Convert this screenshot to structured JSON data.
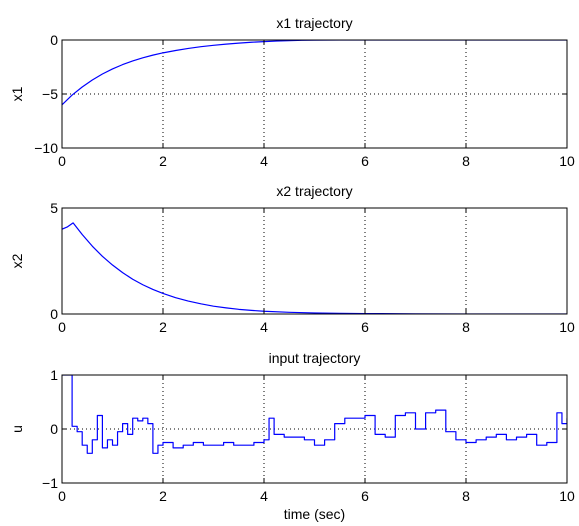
{
  "chart_data": [
    {
      "type": "line",
      "title": "x1 trajectory",
      "xlabel": "",
      "ylabel": "x1",
      "xlim": [
        0,
        10
      ],
      "ylim": [
        -10,
        0
      ],
      "xticks": [
        0,
        2,
        4,
        6,
        8,
        10
      ],
      "yticks": [
        -10,
        -5,
        0
      ],
      "grid": true,
      "series": [
        {
          "color": "#0000ff",
          "x": [
            0,
            0.2,
            0.4,
            0.6,
            0.8,
            1.0,
            1.2,
            1.4,
            1.6,
            1.8,
            2.0,
            2.25,
            2.5,
            2.75,
            3.0,
            3.25,
            3.5,
            3.75,
            4.0,
            4.25,
            4.5,
            4.75,
            5.0,
            5.5,
            6.0,
            7.0,
            8.0,
            9.0,
            10.0
          ],
          "y": [
            -6.0,
            -5.1,
            -4.35,
            -3.7,
            -3.15,
            -2.68,
            -2.28,
            -1.94,
            -1.65,
            -1.4,
            -1.19,
            -0.97,
            -0.78,
            -0.62,
            -0.49,
            -0.38,
            -0.29,
            -0.21,
            -0.15,
            -0.1,
            -0.06,
            -0.03,
            -0.01,
            0.0,
            0.0,
            0.0,
            0.0,
            0.0,
            0.0
          ]
        }
      ]
    },
    {
      "type": "line",
      "title": "x2 trajectory",
      "xlabel": "",
      "ylabel": "x2",
      "xlim": [
        0,
        10
      ],
      "ylim": [
        0,
        5
      ],
      "xticks": [
        0,
        2,
        4,
        6,
        8,
        10
      ],
      "yticks": [
        0,
        5
      ],
      "grid": true,
      "series": [
        {
          "color": "#0000ff",
          "x": [
            0,
            0.1,
            0.22,
            0.4,
            0.6,
            0.8,
            1.0,
            1.2,
            1.4,
            1.6,
            1.8,
            2.0,
            2.25,
            2.5,
            2.75,
            3.0,
            3.25,
            3.5,
            3.75,
            4.0,
            4.5,
            5.0,
            5.5,
            6.0,
            7.0,
            8.0,
            9.0,
            10.0
          ],
          "y": [
            4.0,
            4.1,
            4.3,
            3.75,
            3.2,
            2.72,
            2.31,
            1.95,
            1.64,
            1.38,
            1.16,
            0.97,
            0.77,
            0.61,
            0.48,
            0.37,
            0.29,
            0.22,
            0.17,
            0.13,
            0.08,
            0.05,
            0.03,
            0.02,
            0.01,
            0.0,
            0.0,
            0.0
          ]
        }
      ]
    },
    {
      "type": "line",
      "title": "input trajectory",
      "xlabel": "time (sec)",
      "ylabel": "u",
      "xlim": [
        0,
        10
      ],
      "ylim": [
        -1,
        1
      ],
      "xticks": [
        0,
        2,
        4,
        6,
        8,
        10
      ],
      "yticks": [
        -1,
        0,
        1
      ],
      "grid": true,
      "series": [
        {
          "color": "#0000ff",
          "step": true,
          "x": [
            0,
            0.1,
            0.2,
            0.3,
            0.4,
            0.5,
            0.6,
            0.7,
            0.8,
            0.9,
            1.0,
            1.1,
            1.2,
            1.3,
            1.4,
            1.5,
            1.6,
            1.7,
            1.8,
            1.9,
            2.0,
            2.2,
            2.4,
            2.6,
            2.8,
            3.0,
            3.2,
            3.4,
            3.6,
            3.8,
            4.0,
            4.1,
            4.2,
            4.4,
            4.6,
            4.8,
            5.0,
            5.2,
            5.4,
            5.6,
            5.8,
            6.0,
            6.2,
            6.4,
            6.6,
            6.8,
            7.0,
            7.2,
            7.4,
            7.6,
            7.8,
            8.0,
            8.2,
            8.4,
            8.6,
            8.8,
            9.0,
            9.2,
            9.4,
            9.6,
            9.8,
            9.9,
            10.0
          ],
          "y": [
            1.0,
            1.0,
            0.05,
            -0.05,
            -0.3,
            -0.45,
            -0.2,
            0.25,
            -0.35,
            -0.2,
            -0.3,
            -0.05,
            0.1,
            -0.1,
            0.2,
            0.15,
            0.2,
            0.1,
            -0.45,
            -0.3,
            -0.25,
            -0.35,
            -0.3,
            -0.25,
            -0.3,
            -0.3,
            -0.25,
            -0.3,
            -0.3,
            -0.25,
            -0.2,
            0.2,
            -0.1,
            -0.15,
            -0.15,
            -0.2,
            -0.3,
            -0.2,
            0.1,
            0.2,
            0.2,
            0.25,
            -0.1,
            -0.15,
            0.25,
            0.3,
            0.0,
            0.3,
            0.35,
            -0.05,
            -0.2,
            -0.25,
            -0.2,
            -0.15,
            -0.1,
            -0.2,
            -0.15,
            -0.1,
            -0.3,
            -0.25,
            0.3,
            0.1,
            0.2
          ]
        }
      ]
    }
  ]
}
